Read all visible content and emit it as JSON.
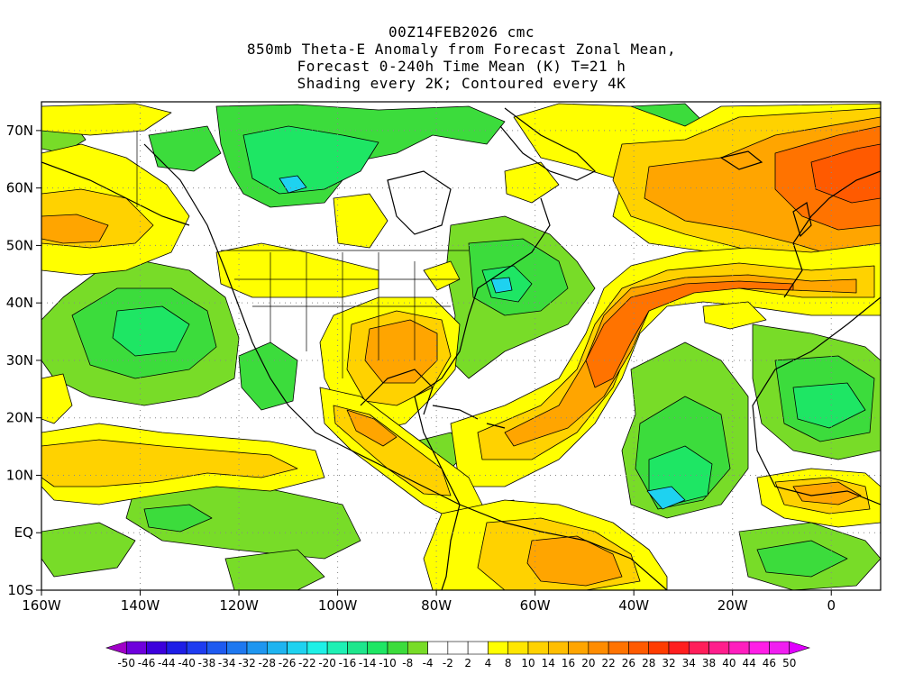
{
  "header": {
    "line1": "00Z14FEB2026 cmc",
    "line2": "850mb Theta-E Anomaly from Forecast Zonal Mean,",
    "line3": "Forecast 0-240h Time Mean (K) T=21 h",
    "line4": "Shading every 2K; Contoured every 4K"
  },
  "map": {
    "lon_range": [
      -160,
      10
    ],
    "lat_range": [
      -10,
      75
    ],
    "lon_ticks": [
      {
        "value": -160,
        "label": "160W"
      },
      {
        "value": -140,
        "label": "140W"
      },
      {
        "value": -120,
        "label": "120W"
      },
      {
        "value": -100,
        "label": "100W"
      },
      {
        "value": -80,
        "label": "80W"
      },
      {
        "value": -60,
        "label": "60W"
      },
      {
        "value": -40,
        "label": "40W"
      },
      {
        "value": -20,
        "label": "20W"
      },
      {
        "value": 0,
        "label": "0"
      }
    ],
    "lat_ticks": [
      {
        "value": 70,
        "label": "70N"
      },
      {
        "value": 60,
        "label": "60N"
      },
      {
        "value": 50,
        "label": "50N"
      },
      {
        "value": 40,
        "label": "40N"
      },
      {
        "value": 30,
        "label": "30N"
      },
      {
        "value": 20,
        "label": "20N"
      },
      {
        "value": 10,
        "label": "10N"
      },
      {
        "value": 0,
        "label": "EQ"
      },
      {
        "value": -10,
        "label": "10S"
      }
    ],
    "gridlines": "dotted"
  },
  "colorbar": {
    "labels": [
      "-50",
      "-46",
      "-44",
      "-40",
      "-38",
      "-34",
      "-32",
      "-28",
      "-26",
      "-22",
      "-20",
      "-16",
      "-14",
      "-10",
      "-8",
      "-4",
      "-2",
      "2",
      "4",
      "8",
      "10",
      "14",
      "16",
      "20",
      "22",
      "26",
      "28",
      "32",
      "34",
      "38",
      "40",
      "44",
      "46",
      "50"
    ],
    "colors": [
      "#a000c8",
      "#6e00dc",
      "#3c00dc",
      "#1e1ee6",
      "#1e3cf0",
      "#1e5af0",
      "#1e78f0",
      "#1e96f0",
      "#1eb4f0",
      "#1ed2f0",
      "#1ef0e6",
      "#1ef0b4",
      "#1ee68c",
      "#1ee664",
      "#3cdc3c",
      "#78dc28",
      "#ffffff",
      "#ffffff",
      "#ffffff",
      "#ffff00",
      "#ffe600",
      "#ffd200",
      "#ffbe00",
      "#ffa500",
      "#ff8c00",
      "#ff7300",
      "#ff5a00",
      "#ff3c00",
      "#ff1e1e",
      "#ff1e5a",
      "#ff1e8c",
      "#ff1ebe",
      "#ff1ee6",
      "#f01ef0",
      "#e100ff"
    ]
  },
  "colors": {
    "neg_light": "#78dc28",
    "neg_mid": "#3cdc3c",
    "neg_strong": "#1ee664",
    "neg_cyan": "#1ed2f0",
    "neg_blue": "#1e96f0",
    "pos_light": "#ffff00",
    "pos_mid": "#ffd200",
    "pos_orange": "#ffa500",
    "pos_strong": "#ff7300",
    "pos_red": "#ff5a00"
  }
}
